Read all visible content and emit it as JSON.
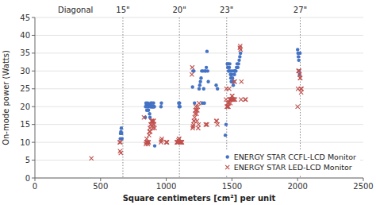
{
  "chart_data": {
    "type": "scatter",
    "xlabel": "Square centimeters [cm²] per unit",
    "ylabel": "On-mode power (Watts)",
    "xlim": [
      0,
      2500
    ],
    "ylim": [
      0,
      45
    ],
    "xticks": [
      0,
      500,
      1000,
      1500,
      2000,
      2500
    ],
    "yticks": [
      0,
      5,
      10,
      15,
      20,
      25,
      30,
      35,
      40,
      45
    ],
    "grid": "y",
    "legend": "lower right",
    "annotations": [
      {
        "text": "Diagonal"
      },
      {
        "text": "15\"",
        "x": 670
      },
      {
        "text": "20\"",
        "x": 1100
      },
      {
        "text": "23\"",
        "x": 1460
      },
      {
        "text": "27\"",
        "x": 2020
      }
    ],
    "series": [
      {
        "name": "ENERGY STAR CCFL-LCD Monitor",
        "color": "#4472C4",
        "marker": "circle",
        "x": [
          650,
          652,
          655,
          658,
          660,
          663,
          840,
          843,
          846,
          849,
          852,
          855,
          858,
          861,
          864,
          867,
          870,
          873,
          876,
          879,
          882,
          885,
          888,
          891,
          894,
          897,
          900,
          903,
          906,
          909,
          912,
          960,
          963,
          1095,
          1098,
          1101,
          1104,
          1200,
          1203,
          1210,
          1215,
          1250,
          1255,
          1260,
          1265,
          1270,
          1275,
          1280,
          1285,
          1290,
          1295,
          1300,
          1305,
          1310,
          1315,
          1320,
          1380,
          1390,
          1450,
          1455,
          1465,
          1468,
          1471,
          1474,
          1477,
          1480,
          1483,
          1486,
          1489,
          1492,
          1495,
          1498,
          1501,
          1504,
          1507,
          1510,
          1513,
          1516,
          1519,
          1522,
          1525,
          1530,
          1535,
          1540,
          1545,
          1550,
          1555,
          1560,
          1565,
          2000,
          2003,
          2006,
          2009,
          2012,
          2015,
          2018
        ],
        "values": [
          11,
          12.5,
          13,
          14,
          12.5,
          11,
          17,
          20,
          21,
          20.5,
          19,
          20,
          21,
          20,
          19,
          20,
          20.5,
          18,
          17,
          20,
          21,
          20,
          20,
          21,
          20,
          20,
          20,
          21,
          20,
          20,
          9,
          20,
          21,
          21,
          20,
          21,
          20,
          25.5,
          30,
          30,
          21,
          25,
          26,
          27,
          28,
          30,
          21,
          30,
          25,
          21,
          30,
          30,
          31,
          35.5,
          30,
          27,
          26,
          25,
          12,
          15,
          32,
          31,
          32,
          30,
          30,
          31,
          32,
          30,
          29,
          28,
          27,
          29,
          30,
          28,
          27,
          26,
          27,
          30,
          29,
          30,
          30,
          30,
          31,
          32,
          31,
          32,
          33,
          34,
          35,
          36,
          35,
          34,
          33,
          30,
          29,
          35
        ]
      },
      {
        "name": "ENERGY STAR LED-LCD Monitor",
        "color": "#C0504D",
        "marker": "x",
        "x": [
          430,
          645,
          648,
          651,
          654,
          830,
          845,
          848,
          851,
          854,
          857,
          860,
          863,
          866,
          869,
          872,
          875,
          878,
          881,
          884,
          887,
          890,
          893,
          896,
          899,
          902,
          905,
          908,
          911,
          960,
          963,
          966,
          1000,
          1003,
          1006,
          1080,
          1083,
          1086,
          1090,
          1093,
          1096,
          1099,
          1102,
          1105,
          1108,
          1111,
          1114,
          1117,
          1120,
          1195,
          1198,
          1201,
          1204,
          1207,
          1210,
          1213,
          1216,
          1219,
          1222,
          1225,
          1228,
          1231,
          1234,
          1237,
          1240,
          1243,
          1246,
          1249,
          1300,
          1305,
          1310,
          1380,
          1385,
          1390,
          1455,
          1458,
          1461,
          1464,
          1467,
          1470,
          1473,
          1476,
          1479,
          1482,
          1485,
          1488,
          1491,
          1494,
          1497,
          1500,
          1503,
          1506,
          1509,
          1512,
          1515,
          1518,
          1521,
          1524,
          1560,
          1563,
          1566,
          1569,
          1572,
          1600,
          1605,
          2000,
          2003,
          2006,
          2009,
          2012,
          2015,
          2018,
          2021,
          2024,
          2027,
          2030
        ],
        "values": [
          5.5,
          10,
          7.5,
          10,
          7,
          17,
          9.5,
          10,
          11,
          10,
          10,
          9.5,
          10,
          10,
          12,
          13,
          14,
          13,
          15,
          15,
          16,
          16,
          16,
          14,
          15,
          16,
          16,
          15,
          14,
          10,
          10.5,
          11,
          10,
          10,
          10,
          10,
          10,
          10,
          10,
          10.5,
          11,
          11,
          10,
          10,
          10,
          10,
          10,
          10,
          10,
          29,
          31,
          14,
          14.5,
          15,
          16,
          16,
          17,
          18,
          19,
          20,
          19,
          18,
          16,
          19,
          20,
          14,
          15,
          21,
          15,
          15,
          15,
          16,
          16,
          15,
          22,
          25,
          20,
          20,
          21,
          20,
          20,
          21,
          25,
          22,
          22,
          21,
          22,
          22,
          22,
          23,
          23,
          22,
          22,
          22,
          22,
          27,
          27,
          22,
          36.5,
          37,
          36,
          22,
          27,
          22,
          22,
          20,
          25,
          30,
          30,
          30,
          29,
          28,
          28,
          25,
          24,
          25
        ]
      }
    ]
  }
}
